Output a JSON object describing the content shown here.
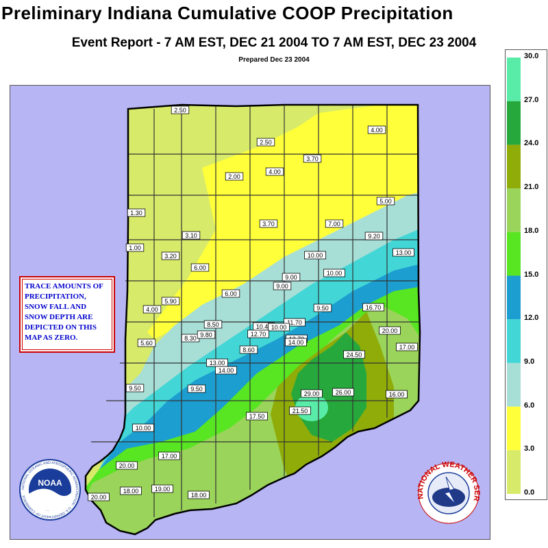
{
  "header": {
    "title": "Preliminary Indiana Cumulative COOP Precipitation",
    "subtitle": "Event Report - 7 AM EST, DEC 21 2004 TO  7 AM EST, DEC 23 2004",
    "prepared": "Prepared Dec 23 2004"
  },
  "note": {
    "text": "TRACE AMOUNTS OF PRECIPITATION, SNOW FALL AND SNOW DEPTH ARE DEPICTED ON THIS MAP AS ZERO."
  },
  "legend": {
    "labels": [
      "30.0",
      "27.0",
      "24.0",
      "21.0",
      "18.0",
      "15.0",
      "12.0",
      "9.0",
      "6.0",
      "3.0",
      "0.0"
    ],
    "colors": [
      "#58eca8",
      "#26a83c",
      "#8fac08",
      "#9ad45a",
      "#58e622",
      "#1c9ed0",
      "#42d6d6",
      "#a7ded6",
      "#ffff3a",
      "#d8ea6a"
    ]
  },
  "colors": {
    "lake_background": "#b7b5f3",
    "state_outline": "#000000",
    "county_lines": "#333333"
  },
  "stations": [
    {
      "value": "2.50"
    },
    {
      "value": "2.50"
    },
    {
      "value": "4.00"
    },
    {
      "value": "3.70"
    },
    {
      "value": "2.00"
    },
    {
      "value": "4.00"
    },
    {
      "value": "5.00"
    },
    {
      "value": "1.30"
    },
    {
      "value": "3.70"
    },
    {
      "value": "7.00"
    },
    {
      "value": "1.00"
    },
    {
      "value": "3.10"
    },
    {
      "value": "9.20"
    },
    {
      "value": "3.20"
    },
    {
      "value": "13.00"
    },
    {
      "value": "10.00"
    },
    {
      "value": "6.00"
    },
    {
      "value": "9.00"
    },
    {
      "value": "10.00"
    },
    {
      "value": "9.00"
    },
    {
      "value": "6.00"
    },
    {
      "value": "5.90"
    },
    {
      "value": "4.00"
    },
    {
      "value": "9.50"
    },
    {
      "value": "16.70"
    },
    {
      "value": "8.50"
    },
    {
      "value": "10.40"
    },
    {
      "value": "11.70"
    },
    {
      "value": "10.00"
    },
    {
      "value": "12.70"
    },
    {
      "value": "8.30"
    },
    {
      "value": "9.80"
    },
    {
      "value": "13.70"
    },
    {
      "value": "20.00"
    },
    {
      "value": "5.60"
    },
    {
      "value": "14.00"
    },
    {
      "value": "8.60"
    },
    {
      "value": "17.00"
    },
    {
      "value": "13.00"
    },
    {
      "value": "24.50"
    },
    {
      "value": "14.00"
    },
    {
      "value": "9.50"
    },
    {
      "value": "9.50"
    },
    {
      "value": "29.00"
    },
    {
      "value": "26.00"
    },
    {
      "value": "16.00"
    },
    {
      "value": "17.50"
    },
    {
      "value": "21.50"
    },
    {
      "value": "10.00"
    },
    {
      "value": "17.00"
    },
    {
      "value": "20.00"
    },
    {
      "value": "20.00"
    },
    {
      "value": "18.00"
    },
    {
      "value": "19.00"
    },
    {
      "value": "18.00"
    }
  ],
  "logos": {
    "noaa": "NOAA",
    "noaa_ring": "NATIONAL OCEANIC AND ATMOSPHERIC ADMINISTRATION · U.S. DEPARTMENT OF COMMERCE",
    "nws_ring": "NATIONAL WEATHER SERVICE"
  }
}
